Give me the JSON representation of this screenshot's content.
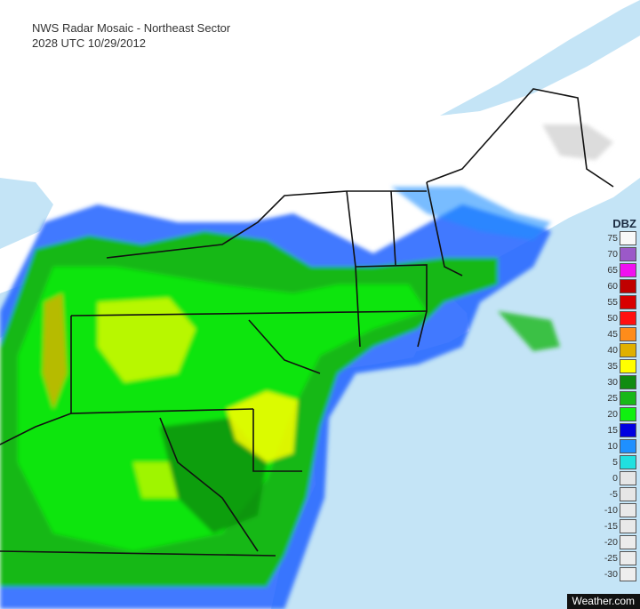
{
  "header": {
    "title": "NWS Radar Mosaic - Northeast Sector",
    "timestamp": "2028 UTC 10/29/2012"
  },
  "legend": {
    "unit": "DBZ",
    "items": [
      {
        "label": "75",
        "color": "#f8f8f8"
      },
      {
        "label": "70",
        "color": "#9b59c8"
      },
      {
        "label": "65",
        "color": "#f010f0"
      },
      {
        "label": "60",
        "color": "#c00000"
      },
      {
        "label": "55",
        "color": "#d80000"
      },
      {
        "label": "50",
        "color": "#ff1010"
      },
      {
        "label": "45",
        "color": "#ff8c1a"
      },
      {
        "label": "40",
        "color": "#e0b000"
      },
      {
        "label": "35",
        "color": "#ffff00"
      },
      {
        "label": "30",
        "color": "#108c10"
      },
      {
        "label": "25",
        "color": "#18b818"
      },
      {
        "label": "20",
        "color": "#10f010"
      },
      {
        "label": "15",
        "color": "#0000e0"
      },
      {
        "label": "10",
        "color": "#1e90ff"
      },
      {
        "label": "5",
        "color": "#20e0e0"
      },
      {
        "label": "0",
        "color": "#e6e6e6"
      },
      {
        "label": "-5",
        "color": "#e6e6e6"
      },
      {
        "label": "-10",
        "color": "#e9e9e9"
      },
      {
        "label": "-15",
        "color": "#e9e9e9"
      },
      {
        "label": "-20",
        "color": "#ececec"
      },
      {
        "label": "-25",
        "color": "#ececec"
      },
      {
        "label": "-30",
        "color": "#eeeeee"
      }
    ]
  },
  "credit": "Weather.com",
  "colors": {
    "ocean": "#c4e4f6",
    "land": "#ffffff",
    "border": "#111111"
  }
}
